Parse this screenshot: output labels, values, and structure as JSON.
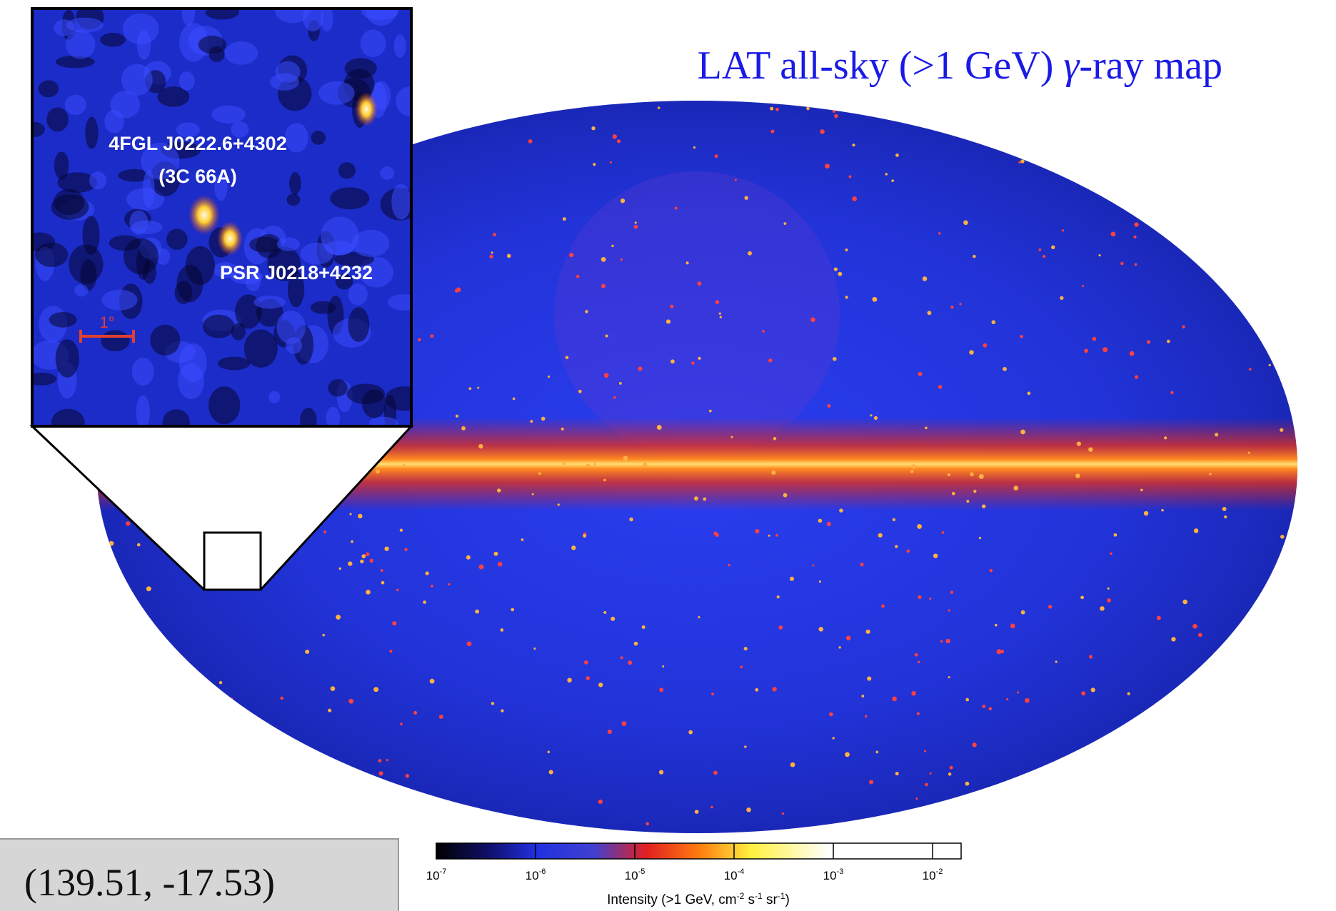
{
  "title": {
    "before": "LAT all-sky (>1 GeV) ",
    "symbol": "γ",
    "after": "-ray map"
  },
  "inset": {
    "source_name": "4FGL J0222.6+4302",
    "source_alias": "(3C 66A)",
    "pulsar_name": "PSR J0218+4232",
    "scale_label": "1°"
  },
  "coordinates": "(139.51, -17.53)",
  "colorbar": {
    "ticks": [
      {
        "value": 1e-07,
        "base": "10",
        "exponent": "-7"
      },
      {
        "value": 1e-06,
        "base": "10",
        "exponent": "-6"
      },
      {
        "value": 1e-05,
        "base": "10",
        "exponent": "-5"
      },
      {
        "value": 0.0001,
        "base": "10",
        "exponent": "-4"
      },
      {
        "value": 0.001,
        "base": "10",
        "exponent": "-3"
      },
      {
        "value": 0.01,
        "base": "10",
        "exponent": "-2"
      }
    ],
    "label_parts": [
      "Intensity (>1 GeV, cm",
      "-2",
      " s",
      "-1",
      " sr",
      "-1",
      ")"
    ]
  }
}
